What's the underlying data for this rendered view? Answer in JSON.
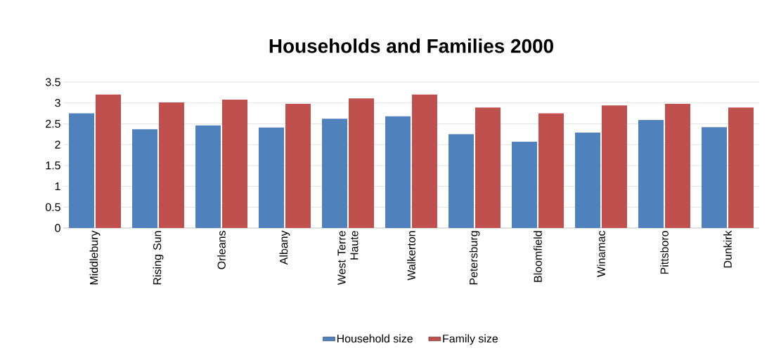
{
  "chart_data": {
    "type": "bar",
    "title": "Households and Families 2000",
    "categories": [
      "Middlebury",
      "Rising Sun",
      "Orleans",
      "Albany",
      "West Terre Haute",
      "Walkerton",
      "Petersburg",
      "Bloomfield",
      "Winamac",
      "Pittsboro",
      "Dunkirk"
    ],
    "series": [
      {
        "name": "Household size",
        "color": "#4f81bd",
        "values": [
          2.75,
          2.37,
          2.46,
          2.41,
          2.62,
          2.68,
          2.25,
          2.07,
          2.29,
          2.59,
          2.42
        ]
      },
      {
        "name": "Family size",
        "color": "#c0504d",
        "values": [
          3.2,
          3.01,
          3.08,
          2.98,
          3.11,
          3.2,
          2.89,
          2.75,
          2.94,
          2.98,
          2.89
        ]
      }
    ],
    "ylim": [
      0,
      3.5
    ],
    "yticks": [
      0,
      0.5,
      1,
      1.5,
      2,
      2.5,
      3,
      3.5
    ],
    "grid": "y",
    "legend": "bottom"
  }
}
